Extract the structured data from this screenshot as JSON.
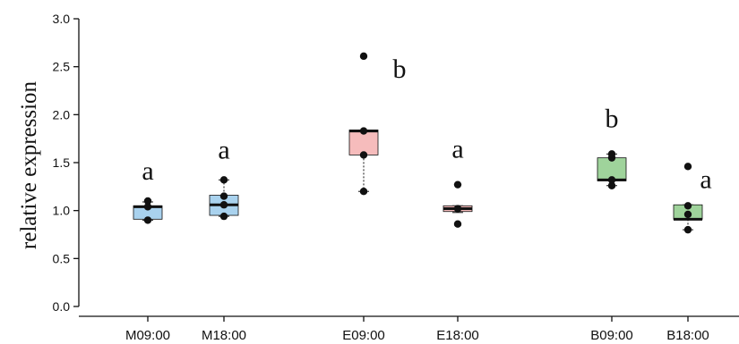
{
  "chart_data": {
    "type": "box",
    "ylabel": "relative expression",
    "xlabel": "",
    "ylim": [
      0,
      3.0
    ],
    "yticks": [
      "0.0",
      "0.5",
      "1.0",
      "1.5",
      "2.0",
      "2.5",
      "3.0"
    ],
    "categories": [
      "M09:00",
      "M18:00",
      "E09:00",
      "E18:00",
      "B09:00",
      "B18:00"
    ],
    "colors": {
      "M": "#a9d2ee",
      "E": "#f6bcbc",
      "B": "#9fd39b",
      "axis": "#111111"
    },
    "boxes": [
      {
        "category": "M09:00",
        "group": "M",
        "min": 0.9,
        "q1": 0.91,
        "median": 1.04,
        "q3": 1.05,
        "max": 1.09,
        "points": [
          0.9,
          1.04,
          1.1
        ],
        "letter": "a"
      },
      {
        "category": "M18:00",
        "group": "M",
        "min": 0.94,
        "q1": 0.95,
        "median": 1.06,
        "q3": 1.16,
        "max": 1.32,
        "points": [
          0.94,
          1.06,
          1.15,
          1.32
        ],
        "letter": "a"
      },
      {
        "category": "E09:00",
        "group": "E",
        "min": 1.2,
        "q1": 1.58,
        "median": 1.83,
        "q3": 1.84,
        "max": 1.84,
        "points": [
          1.2,
          1.58,
          1.83,
          2.61
        ],
        "letter": "b"
      },
      {
        "category": "E18:00",
        "group": "E",
        "min": 0.98,
        "q1": 0.99,
        "median": 1.02,
        "q3": 1.05,
        "max": 1.05,
        "points": [
          0.86,
          1.02,
          1.27
        ],
        "letter": "a"
      },
      {
        "category": "B09:00",
        "group": "B",
        "min": 1.26,
        "q1": 1.31,
        "median": 1.32,
        "q3": 1.55,
        "max": 1.59,
        "points": [
          1.26,
          1.32,
          1.55,
          1.59
        ],
        "letter": "b"
      },
      {
        "category": "B18:00",
        "group": "B",
        "min": 0.8,
        "q1": 0.91,
        "median": 0.91,
        "q3": 1.06,
        "max": 1.06,
        "points": [
          0.8,
          0.96,
          1.05,
          1.46
        ],
        "letter": "a"
      }
    ]
  }
}
